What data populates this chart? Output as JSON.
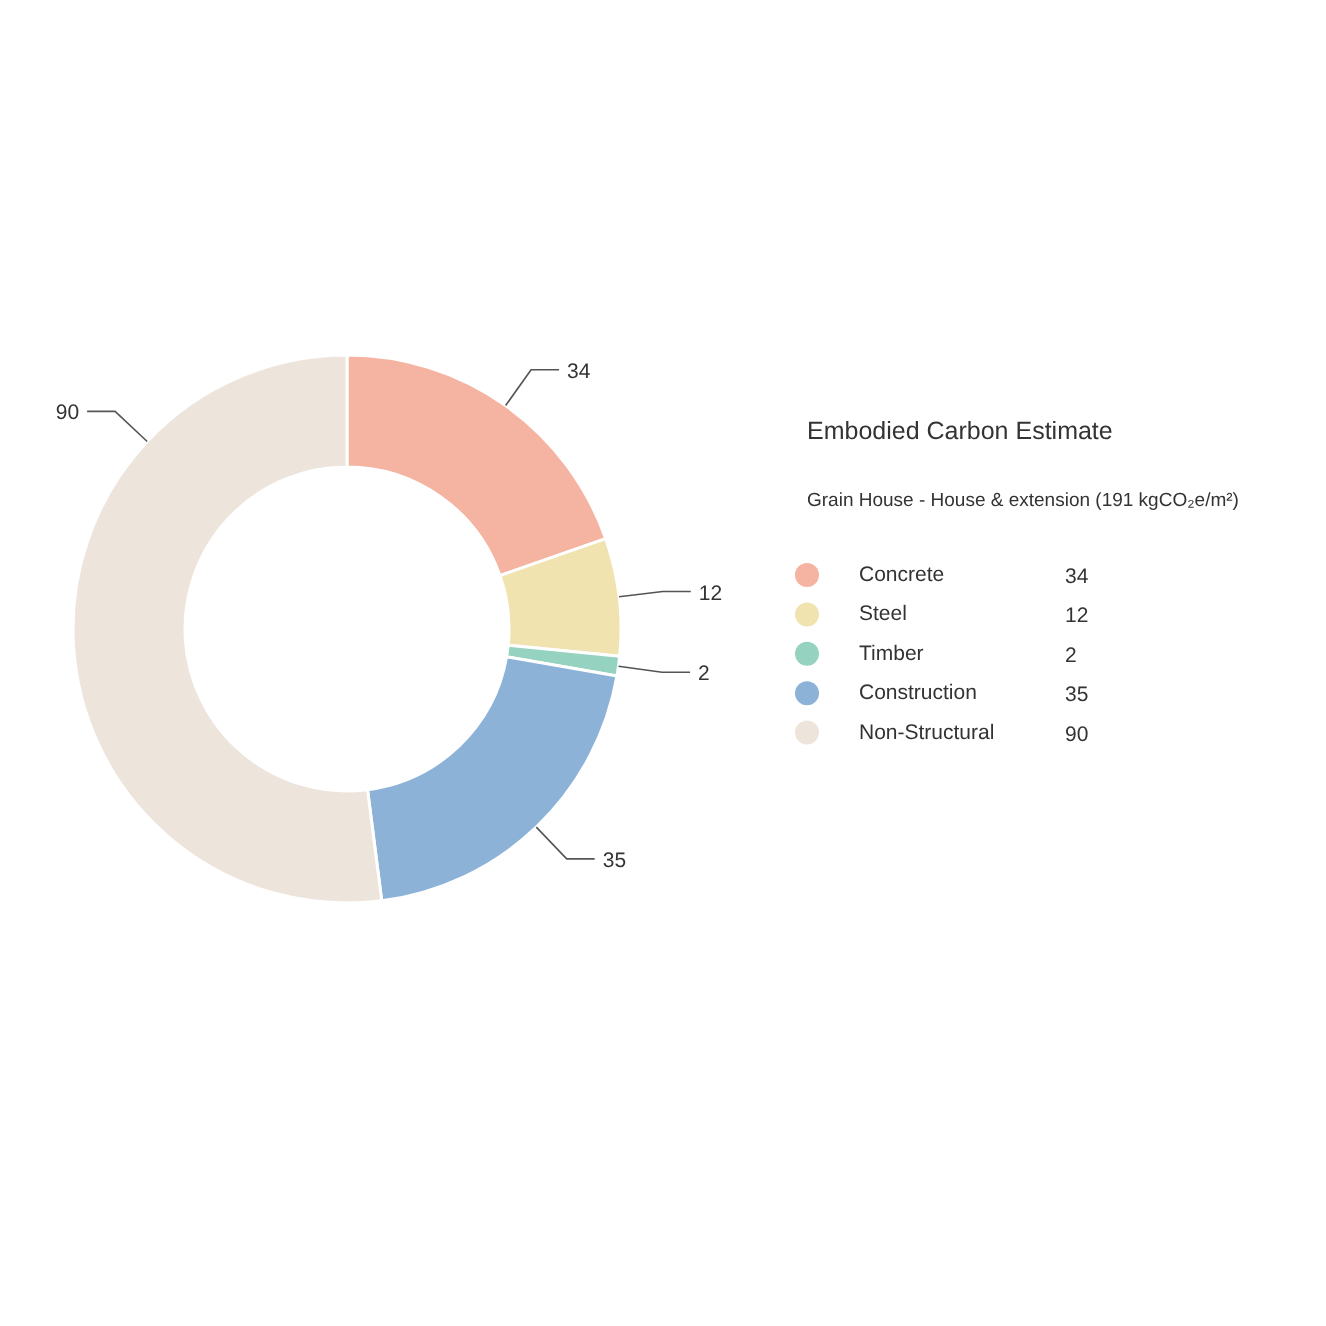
{
  "chart_data": {
    "type": "donut",
    "title": "Embodied Carbon Estimate",
    "subtitle": "Grain House - House & extension (191 kgCO₂e/m²)",
    "categories": [
      "Concrete",
      "Steel",
      "Timber",
      "Construction",
      "Non-Structural"
    ],
    "values": [
      34,
      12,
      2,
      35,
      90
    ],
    "colors": [
      "#f5b4a2",
      "#f0e3b0",
      "#95d3c0",
      "#8db2d8",
      "#ede4dc"
    ],
    "annotations": [
      "34",
      "12",
      "2",
      "35",
      "90"
    ],
    "data_labels": true,
    "legend": "right"
  }
}
